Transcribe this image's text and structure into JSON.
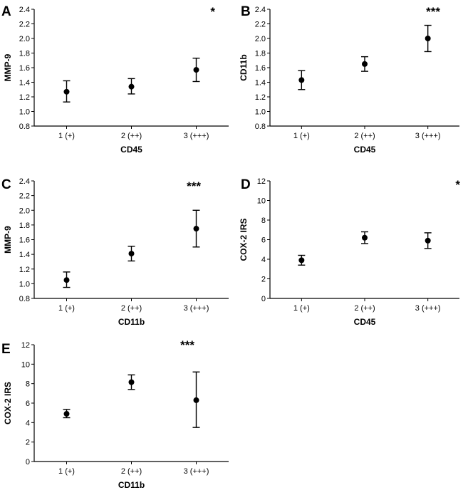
{
  "chart_data": [
    {
      "type": "scatter",
      "panel": "A",
      "categories": [
        "1 (+)",
        "2 (++)",
        "3 (+++)"
      ],
      "means": [
        1.27,
        1.34,
        1.57
      ],
      "err_low": [
        1.13,
        1.24,
        1.41
      ],
      "err_high": [
        1.42,
        1.45,
        1.73
      ],
      "xlabel": "CD45",
      "ylabel": "MMP-9",
      "ylim": [
        0.8,
        2.4
      ],
      "yticks": [
        0.8,
        1.0,
        1.2,
        1.4,
        1.6,
        1.8,
        2.0,
        2.2,
        2.4
      ],
      "ytick_labels": [
        "0.8",
        "1.0",
        "1.2",
        "1.4",
        "1.6",
        "1.8",
        "2.0",
        "2.2",
        "2.4"
      ],
      "significance": "*"
    },
    {
      "type": "scatter",
      "panel": "B",
      "categories": [
        "1 (+)",
        "2 (++)",
        "3 (+++)"
      ],
      "means": [
        1.43,
        1.65,
        2.0
      ],
      "err_low": [
        1.3,
        1.55,
        1.82
      ],
      "err_high": [
        1.56,
        1.75,
        2.18
      ],
      "xlabel": "CD45",
      "ylabel": "CD11b",
      "ylim": [
        0.8,
        2.4
      ],
      "yticks": [
        0.8,
        1.0,
        1.2,
        1.4,
        1.6,
        1.8,
        2.0,
        2.2,
        2.4
      ],
      "ytick_labels": [
        "0.8",
        "1.0",
        "1.2",
        "1.4",
        "1.6",
        "1.8",
        "2.0",
        "2.2",
        "2.4"
      ],
      "significance": "***"
    },
    {
      "type": "scatter",
      "panel": "C",
      "categories": [
        "1 (+)",
        "2 (++)",
        "3 (+++)"
      ],
      "means": [
        1.05,
        1.41,
        1.75
      ],
      "err_low": [
        0.95,
        1.31,
        1.5
      ],
      "err_high": [
        1.16,
        1.51,
        2.0
      ],
      "xlabel": "CD11b",
      "ylabel": "MMP-9",
      "ylim": [
        0.8,
        2.4
      ],
      "yticks": [
        0.8,
        1.0,
        1.2,
        1.4,
        1.6,
        1.8,
        2.0,
        2.2,
        2.4
      ],
      "ytick_labels": [
        "0.8",
        "1.0",
        "1.2",
        "1.4",
        "1.6",
        "1.8",
        "2.0",
        "2.2",
        "2.4"
      ],
      "significance": "***"
    },
    {
      "type": "scatter",
      "panel": "D",
      "categories": [
        "1 (+)",
        "2 (++)",
        "3 (+++)"
      ],
      "means": [
        3.9,
        6.2,
        5.9
      ],
      "err_low": [
        3.4,
        5.6,
        5.1
      ],
      "err_high": [
        4.4,
        6.8,
        6.7
      ],
      "xlabel": "CD45",
      "ylabel": "COX-2 IRS",
      "ylim": [
        0,
        12
      ],
      "yticks": [
        0,
        2,
        4,
        6,
        8,
        10,
        12
      ],
      "ytick_labels": [
        "0",
        "2",
        "4",
        "6",
        "8",
        "10",
        "12"
      ],
      "significance": "*"
    },
    {
      "type": "scatter",
      "panel": "E",
      "categories": [
        "1 (+)",
        "2 (++)",
        "3 (+++)"
      ],
      "means": [
        4.9,
        8.15,
        6.3
      ],
      "err_low": [
        4.5,
        7.4,
        3.5
      ],
      "err_high": [
        5.35,
        8.9,
        9.2
      ],
      "xlabel": "CD11b",
      "ylabel": "COX-2 IRS",
      "ylim": [
        0,
        12
      ],
      "yticks": [
        0,
        2,
        4,
        6,
        8,
        10,
        12
      ],
      "ytick_labels": [
        "0",
        "2",
        "4",
        "6",
        "8",
        "10",
        "12"
      ],
      "significance": "***"
    }
  ]
}
